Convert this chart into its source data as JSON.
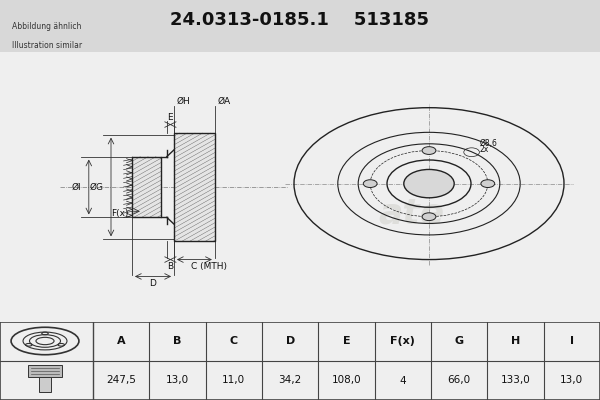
{
  "title_part_number": "24.0313-0185.1",
  "title_ref_number": "513185",
  "subtitle_line1": "Abbildung ähnlich",
  "subtitle_line2": "Illustration similar",
  "bg_color": "#f0f0f0",
  "header_bg": "#d8d8d8",
  "table_cols": [
    "A",
    "B",
    "C",
    "D",
    "E",
    "F(x)",
    "G",
    "H",
    "I"
  ],
  "table_vals": [
    "247,5",
    "13,0",
    "11,0",
    "34,2",
    "108,0",
    "4",
    "66,0",
    "133,0",
    "13,0"
  ],
  "line_color": "#222222",
  "dim_color": "#333333",
  "watermark_color": "#d0d0cc"
}
